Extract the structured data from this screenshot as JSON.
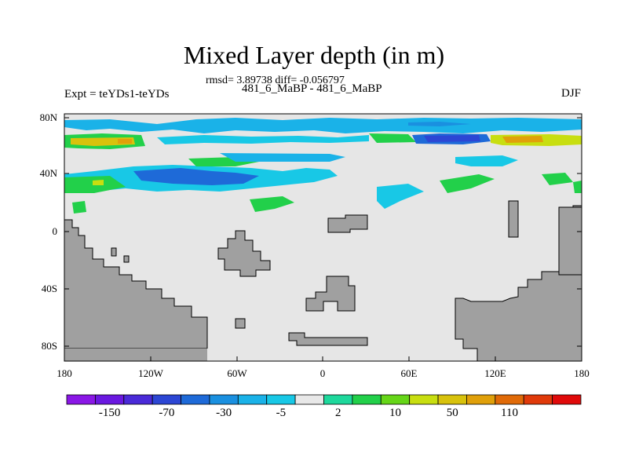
{
  "title": "Mixed Layer depth (in m)",
  "stats": "rmsd= 3.89738 diff= -0.056797",
  "comparison": "481_6_MaBP - 481_6_MaBP",
  "experiment": "Expt = teYDs1-teYDs",
  "season": "DJF",
  "y_ticks": [
    "80N",
    "40N",
    "0",
    "40S",
    "80S"
  ],
  "x_ticks": [
    "180",
    "120W",
    "60W",
    "0",
    "60E",
    "120E",
    "180"
  ],
  "colorbar": {
    "colors": [
      "#8a17e6",
      "#6a18e0",
      "#4a2ad8",
      "#2c46d4",
      "#1e6ad8",
      "#1a90e0",
      "#1ab2e8",
      "#18c8e6",
      "#e8e8e8",
      "#1ed89c",
      "#22d04a",
      "#66d618",
      "#c8de10",
      "#d8c20c",
      "#e0a00a",
      "#e06a08",
      "#e03a0a",
      "#e00a0a"
    ],
    "labels": [
      "-150",
      "-70",
      "-30",
      "-5",
      "2",
      "10",
      "50",
      "110"
    ]
  },
  "legend_colors": {
    "ocean_background": "#e6e6e6",
    "land": "#a0a0a0"
  }
}
